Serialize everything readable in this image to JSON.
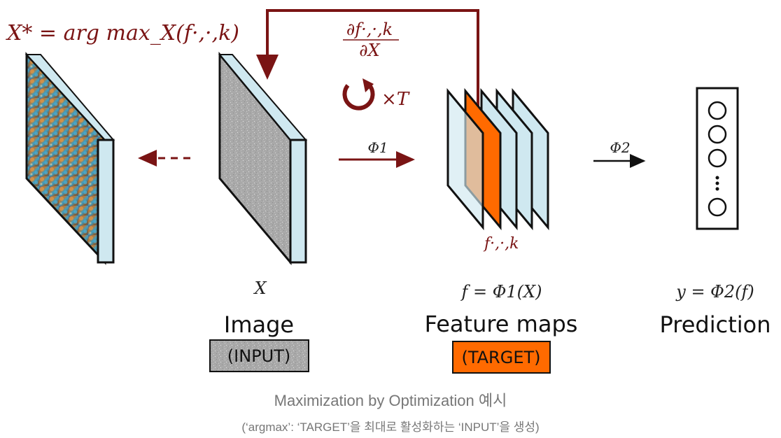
{
  "formula_top_left": "X* = arg max_X(f·,·,k)",
  "gradient_numerator": "∂f·,·,k",
  "gradient_denominator": "∂X",
  "repeat_label": "×T",
  "phi1_label": "Φ1",
  "phi2_label": "Φ2",
  "feature_map_label": "f·,·,k",
  "image_var": "X",
  "feature_eq": "f = Φ1(X)",
  "prediction_eq": "y = Φ2(f)",
  "image_title": "Image",
  "image_tag": "(INPUT)",
  "feature_title": "Feature maps",
  "feature_tag": "(TARGET)",
  "prediction_title": "Prediction",
  "caption_main": "Maximization by Optimization 예시",
  "caption_sub": "(‘argmax’: ‘TARGET’을 최대로 활성화하는 ‘INPUT’을 생성)",
  "colors": {
    "accent": "#7a1414",
    "target": "#ff6a00",
    "map_fill": "#cfe8f0",
    "input_gray": "#aaaaaa"
  }
}
